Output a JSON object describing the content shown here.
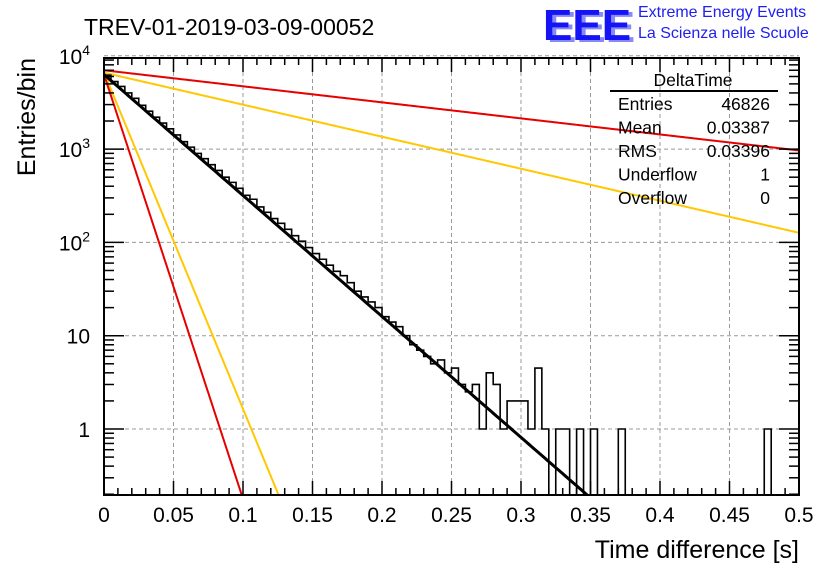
{
  "logo": {
    "mark": "EEE",
    "line1": "Extreme Energy Events",
    "line2": "La Scienza nelle Scuole",
    "color": "#1414f5"
  },
  "chart_data": {
    "type": "bar",
    "subtype": "histogram-step",
    "title": "TREV-01-2019-03-09-00052",
    "xlabel": "Time difference [s]",
    "ylabel": "Entries/bin",
    "xlim": [
      0,
      0.5
    ],
    "ylim": [
      0.17,
      11500
    ],
    "yscale": "log",
    "grid": true,
    "xticks": [
      0,
      0.05,
      0.1,
      0.15,
      0.2,
      0.25,
      0.3,
      0.35,
      0.4,
      0.45,
      0.5
    ],
    "xtick_labels": [
      "0",
      "0.05",
      "0.1",
      "0.15",
      "0.2",
      "0.25",
      "0.3",
      "0.35",
      "0.4",
      "0.45",
      "0.5"
    ],
    "yticks": [
      1,
      10,
      100,
      1000,
      10000
    ],
    "ytick_labels": [
      {
        "base": "1",
        "exp": ""
      },
      {
        "base": "10",
        "exp": ""
      },
      {
        "base": "10",
        "exp": "2"
      },
      {
        "base": "10",
        "exp": "3"
      },
      {
        "base": "10",
        "exp": "4"
      }
    ],
    "bin_width": 0.005,
    "histogram": {
      "name": "DeltaTime",
      "color": "#000000",
      "values": [
        6200,
        5300,
        4700,
        4000,
        3500,
        2950,
        2550,
        2200,
        1900,
        1650,
        1420,
        1200,
        1050,
        900,
        790,
        680,
        590,
        500,
        440,
        380,
        320,
        290,
        240,
        210,
        180,
        160,
        138,
        118,
        103,
        88,
        76,
        66,
        57,
        49,
        44,
        37,
        30,
        26,
        23,
        20,
        16,
        14,
        12.5,
        10,
        8,
        7,
        6,
        5,
        5.5,
        4,
        4.5,
        3,
        2.5,
        3,
        1,
        4,
        3,
        1,
        2,
        2,
        2,
        1,
        4.5,
        1,
        0,
        1,
        1,
        0,
        1,
        0,
        1,
        0,
        0,
        0,
        1,
        0,
        0,
        0,
        0,
        0,
        0,
        0,
        0,
        0,
        0,
        0,
        0,
        0,
        0,
        0,
        0,
        0,
        0,
        0,
        0,
        1,
        0,
        0,
        0,
        0
      ]
    },
    "series": [
      {
        "name": "fit",
        "color": "#000000",
        "type": "exponential",
        "A": 6300,
        "tau": 0.0335
      },
      {
        "name": "band-upper-yellow",
        "color": "#ffc800",
        "type": "exponential",
        "A": 6600,
        "tau": 0.1265
      },
      {
        "name": "band-upper-red",
        "color": "#e60000",
        "type": "exponential",
        "A": 7000,
        "tau": 0.2525
      },
      {
        "name": "band-lower-yellow",
        "color": "#ffc800",
        "type": "exponential",
        "A": 6600,
        "tau": 0.01205
      },
      {
        "name": "band-lower-red",
        "color": "#e60000",
        "type": "exponential",
        "A": 6300,
        "tau": 0.00955
      }
    ],
    "stats_box": {
      "title": "DeltaTime",
      "placement": "top-right",
      "rows": [
        {
          "label": "Entries",
          "value": "46826"
        },
        {
          "label": "Mean",
          "value": "0.03387"
        },
        {
          "label": "RMS",
          "value": "0.03396"
        },
        {
          "label": "Underflow",
          "value": "1"
        },
        {
          "label": "Overflow",
          "value": "0"
        }
      ]
    }
  }
}
